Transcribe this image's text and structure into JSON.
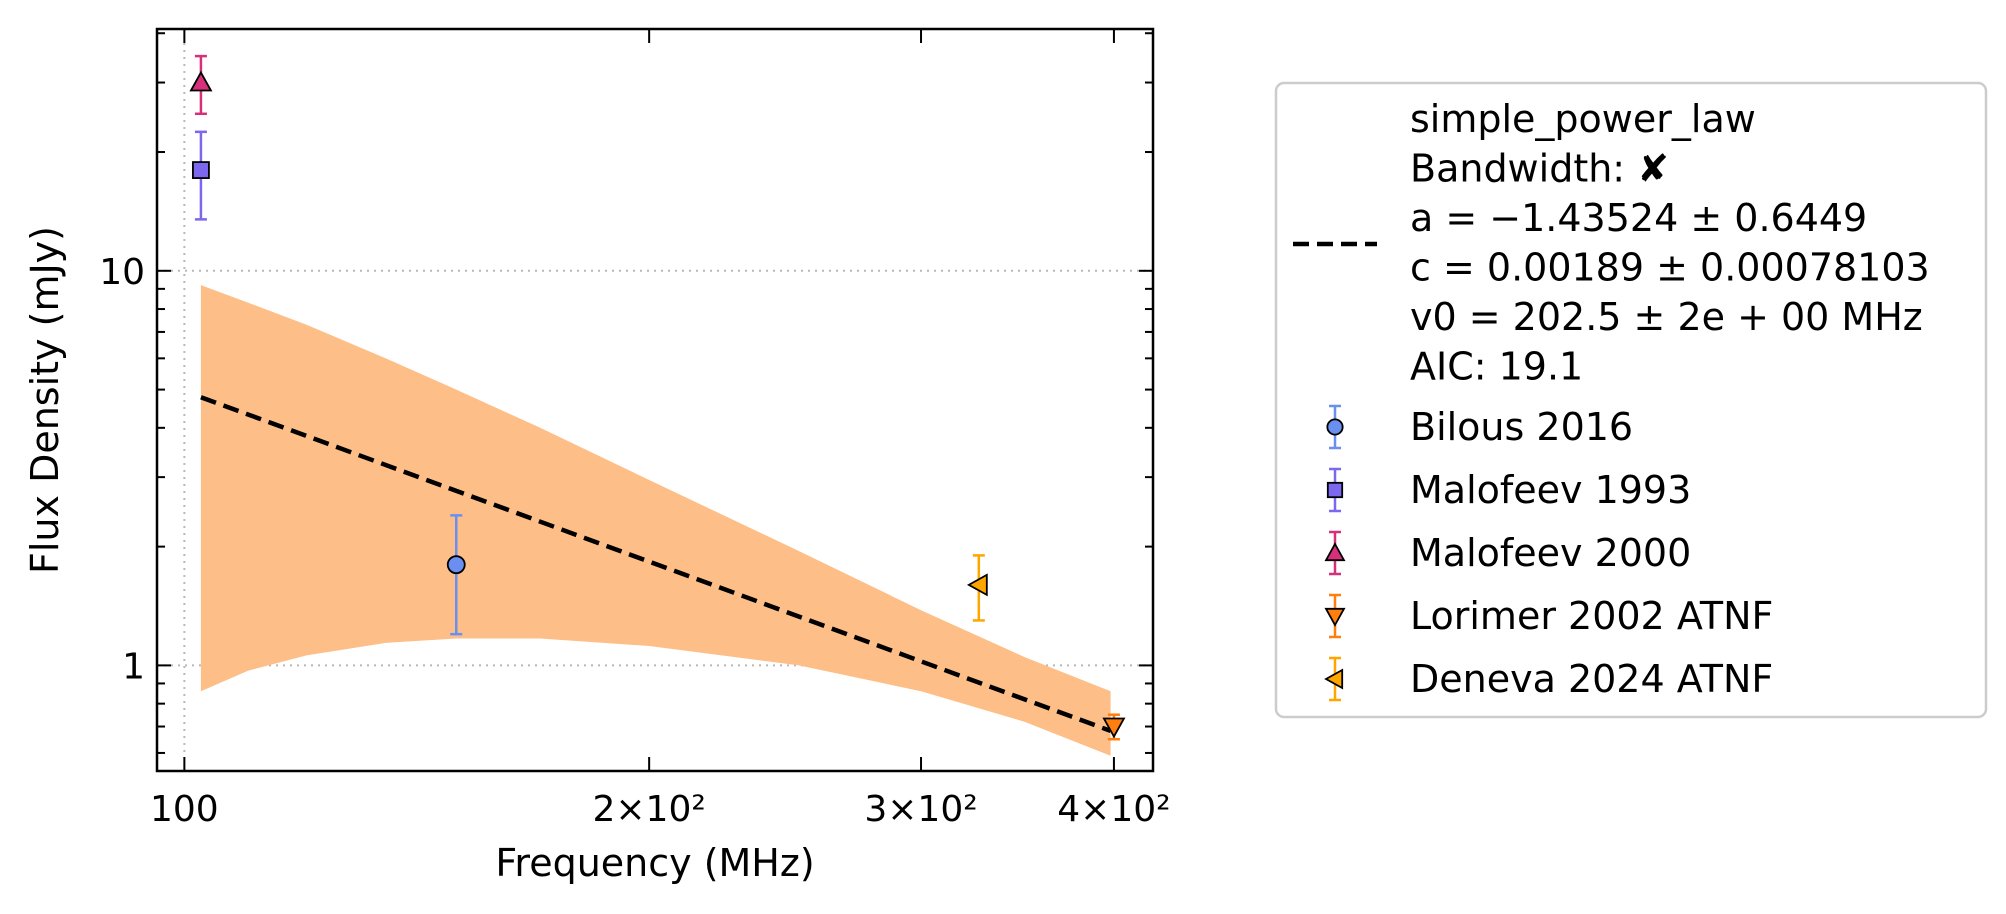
{
  "chart_data": {
    "type": "scatter",
    "xlabel": "Frequency (MHz)",
    "ylabel": "Flux Density (mJy)",
    "xscale": "log",
    "yscale": "log",
    "xlim": [
      96,
      424
    ],
    "ylim": [
      0.54,
      41
    ],
    "grid": "dotted lines at x=100 and y=1, 10",
    "x_ticks": [
      {
        "value": 100,
        "label": "100"
      },
      {
        "value": 200,
        "label": "2×10²"
      },
      {
        "value": 300,
        "label": "3×10²"
      },
      {
        "value": 400,
        "label": "4×10²"
      }
    ],
    "y_ticks": [
      {
        "value": 1,
        "label": "1"
      },
      {
        "value": 10,
        "label": "10"
      }
    ],
    "fit": {
      "name": "simple_power_law",
      "legend_lines": [
        "simple_power_law",
        "Bandwidth: ✘",
        "a = −1.43524 ± 0.6449",
        "c = 0.00189 ± 0.00078103",
        "v0 = 202.5 ± 2e + 00 MHz",
        "AIC: 19.1"
      ],
      "a": -1.43524,
      "v0": 202.5,
      "amplitude_at_v0": 1.8,
      "x_range": [
        102.5,
        398
      ],
      "line_color": "#000000",
      "band_color": "#fdbf87",
      "band": {
        "x": [
          102.5,
          110,
          120,
          135,
          150,
          170,
          200,
          250,
          300,
          350,
          398
        ],
        "lower": [
          0.86,
          0.97,
          1.06,
          1.14,
          1.17,
          1.17,
          1.12,
          1.0,
          0.86,
          0.72,
          0.59
        ],
        "upper": [
          9.2,
          8.3,
          7.3,
          6.0,
          5.0,
          4.0,
          2.95,
          1.95,
          1.38,
          1.05,
          0.86
        ]
      }
    },
    "series": [
      {
        "name": "Bilous 2016",
        "marker": "circle",
        "color": "#6b8ff0",
        "edge": "#000000",
        "err_color": "#6b8ff0",
        "points": [
          {
            "x": 150,
            "y": 1.8,
            "ylo": 1.2,
            "yhi": 2.4
          }
        ]
      },
      {
        "name": "Malofeev 1993",
        "marker": "square",
        "color": "#7b68ee",
        "edge": "#000000",
        "err_color": "#7b68ee",
        "points": [
          {
            "x": 102.5,
            "y": 18.0,
            "ylo": 13.5,
            "yhi": 22.5
          }
        ]
      },
      {
        "name": "Malofeev 2000",
        "marker": "triangle-up",
        "color": "#d6307b",
        "edge": "#000000",
        "err_color": "#d6307b",
        "points": [
          {
            "x": 102.5,
            "y": 30.0,
            "ylo": 25.0,
            "yhi": 35.0
          }
        ]
      },
      {
        "name": "Lorimer 2002 ATNF",
        "marker": "triangle-down",
        "color": "#ff7f0e",
        "edge": "#000000",
        "err_color": "#ff7f0e",
        "points": [
          {
            "x": 400,
            "y": 0.7,
            "ylo": 0.65,
            "yhi": 0.75
          }
        ]
      },
      {
        "name": "Deneva 2024 ATNF",
        "marker": "triangle-left",
        "color": "#ffa500",
        "edge": "#000000",
        "err_color": "#ffa500",
        "points": [
          {
            "x": 327,
            "y": 1.6,
            "ylo": 1.3,
            "yhi": 1.9
          }
        ]
      }
    ],
    "legend": {
      "placement": "outside-right"
    }
  }
}
